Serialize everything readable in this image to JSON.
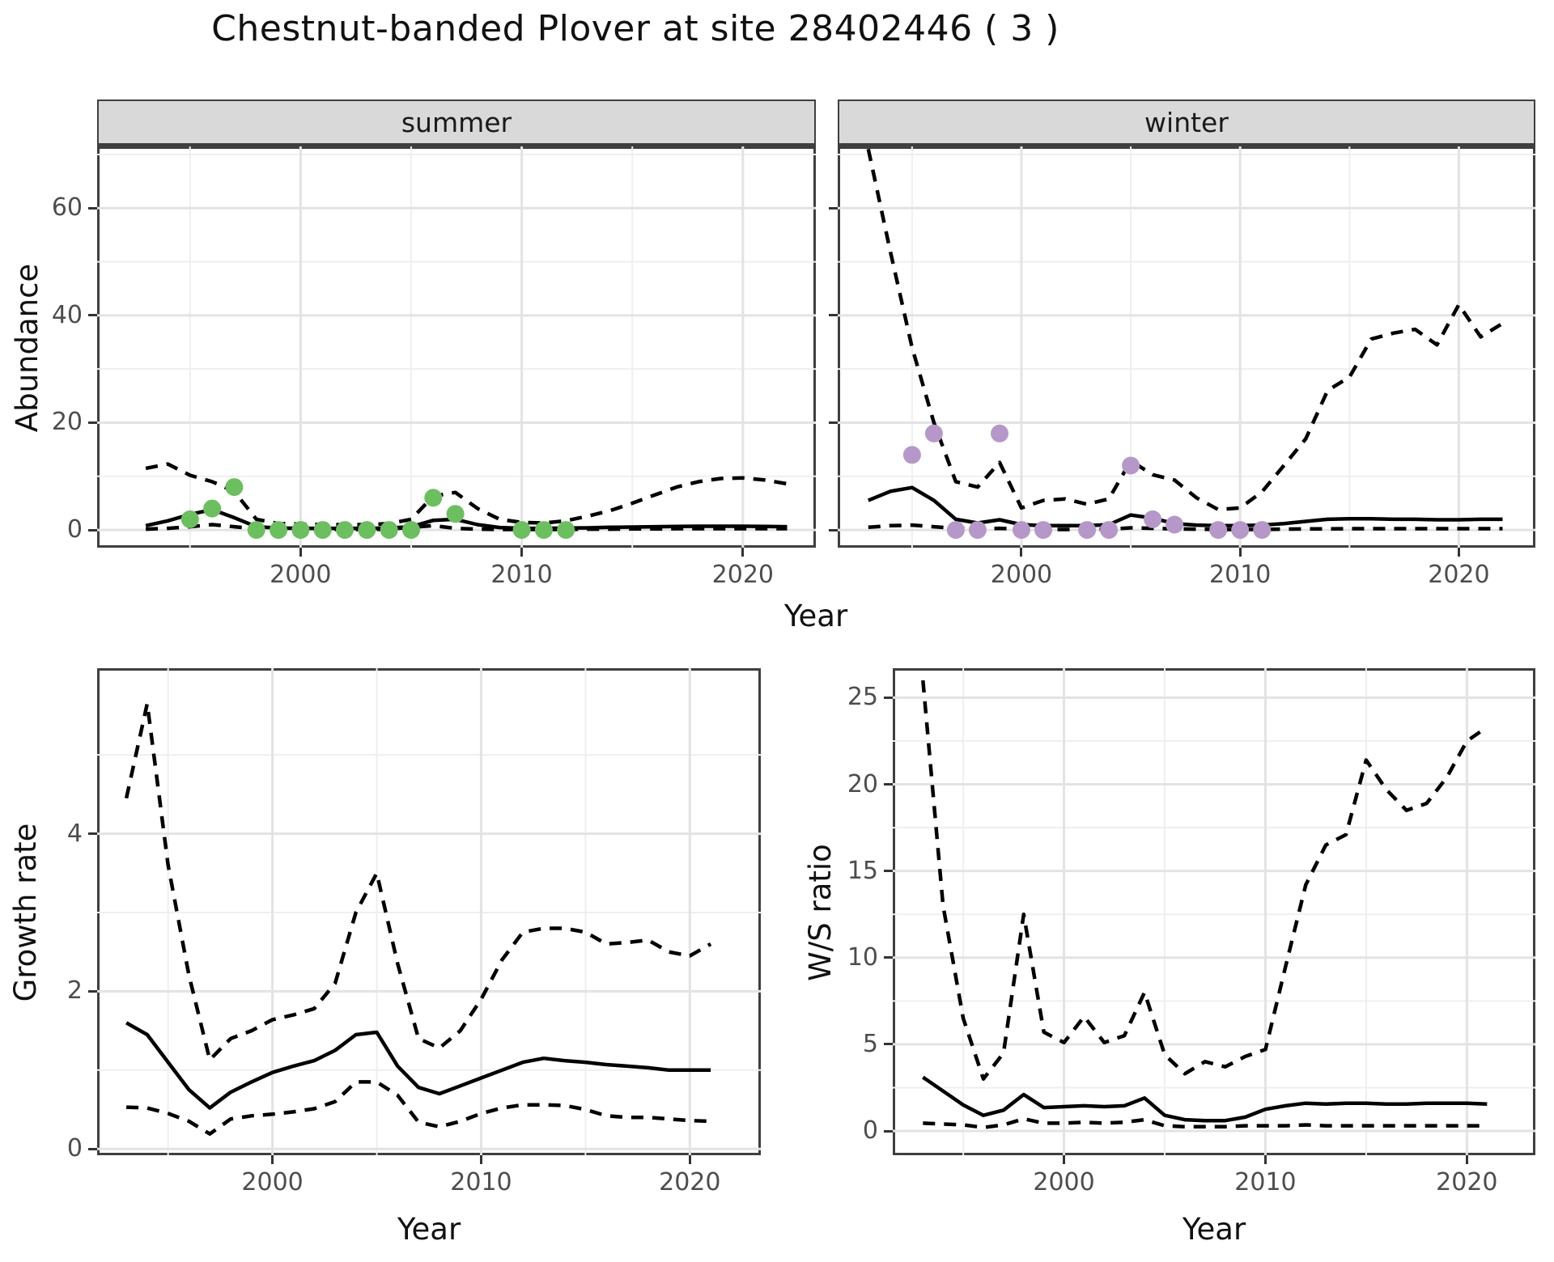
{
  "title": "Chestnut-banded Plover at site 28402446 ( 3 )",
  "facets": {
    "summer_label": "summer",
    "winter_label": "winter"
  },
  "axes": {
    "abundance_label": "Abundance",
    "growth_label": "Growth rate",
    "ws_label": "W/S ratio",
    "year_label": "Year"
  },
  "colors": {
    "summer_points": "#6cbf5f",
    "winter_points": "#b598c9",
    "fit_line": "#000000",
    "ci_line": "#000000",
    "strip_bg": "#d9d9d9",
    "grid_major": "#e3e3e3",
    "grid_minor": "#efefef",
    "axis_text": "#4d4d4d",
    "panel_border": "#3f3f3f"
  },
  "chart_data": [
    {
      "id": "abundance_summer",
      "type": "line",
      "facet": "summer",
      "xlabel": "Year",
      "ylabel": "Abundance",
      "x_domain": [
        1990.8,
        2023.3
      ],
      "y_domain": [
        -3.3,
        71.5
      ],
      "x_ticks": [
        2000,
        2010,
        2020
      ],
      "x_minor": [
        1995,
        2005,
        2015
      ],
      "y_ticks": [
        0,
        20,
        40,
        60
      ],
      "y_minor": [
        10,
        30,
        50,
        70
      ],
      "grid": true,
      "point_color": "#6cbf5f",
      "series": [
        {
          "name": "fit",
          "style": "solid",
          "x_start": 1993,
          "values": [
            0.8,
            1.7,
            2.9,
            3.8,
            2.3,
            0.6,
            0.35,
            0.3,
            0.3,
            0.3,
            0.3,
            0.35,
            0.6,
            1.8,
            2.0,
            1.0,
            0.45,
            0.3,
            0.3,
            0.35,
            0.4,
            0.5,
            0.55,
            0.6,
            0.65,
            0.7,
            0.7,
            0.7,
            0.65,
            0.6
          ]
        },
        {
          "name": "upper_ci",
          "style": "dashed",
          "x_start": 1993,
          "values": [
            11.5,
            12.3,
            10.2,
            9.0,
            7.2,
            2.0,
            1.2,
            1.1,
            1.0,
            1.0,
            1.0,
            1.2,
            2.0,
            6.3,
            7.0,
            4.0,
            2.0,
            1.4,
            1.3,
            1.7,
            2.6,
            3.6,
            5.0,
            6.5,
            8.0,
            9.0,
            9.6,
            9.7,
            9.3,
            8.6
          ]
        },
        {
          "name": "lower_ci",
          "style": "dashed",
          "x_start": 1993,
          "values": [
            0.15,
            0.3,
            0.6,
            1.0,
            0.6,
            0.2,
            0.1,
            0.1,
            0.1,
            0.1,
            0.1,
            0.15,
            0.5,
            0.8,
            0.3,
            0.15,
            0.1,
            0.1,
            0.1,
            0.1,
            0.15,
            0.15,
            0.2,
            0.2,
            0.25,
            0.25,
            0.25,
            0.25,
            0.25,
            0.25
          ]
        }
      ],
      "points": {
        "name": "observed_summer_counts",
        "years": [
          1995,
          1996,
          1997,
          1998,
          1999,
          2000,
          2001,
          2002,
          2003,
          2004,
          2005,
          2006,
          2007,
          2010,
          2011,
          2012
        ],
        "values": [
          2,
          4,
          8,
          0,
          0,
          0,
          0,
          0,
          0,
          0,
          0,
          6,
          3,
          0,
          0,
          0
        ]
      }
    },
    {
      "id": "abundance_winter",
      "type": "line",
      "facet": "winter",
      "xlabel": "Year",
      "ylabel": "Abundance",
      "x_domain": [
        1991.6,
        2023.5
      ],
      "y_domain": [
        -3.3,
        71.5
      ],
      "x_ticks": [
        2000,
        2010,
        2020
      ],
      "x_minor": [
        1995,
        2005,
        2015
      ],
      "y_ticks": [
        0,
        20,
        40,
        60
      ],
      "y_minor": [
        10,
        30,
        50,
        70
      ],
      "grid": true,
      "point_color": "#b598c9",
      "series": [
        {
          "name": "fit",
          "style": "solid",
          "x_start": 1993,
          "values": [
            5.5,
            7.2,
            7.9,
            5.5,
            2.0,
            1.3,
            1.9,
            1.0,
            0.8,
            0.8,
            0.8,
            1.0,
            2.8,
            2.2,
            1.2,
            0.9,
            0.8,
            0.8,
            0.9,
            1.2,
            1.6,
            2.0,
            2.1,
            2.1,
            2.0,
            2.0,
            1.9,
            1.9,
            2.0,
            2.0
          ]
        },
        {
          "name": "upper_ci",
          "style": "dashed",
          "x_start": 1993,
          "values": [
            71,
            52,
            34,
            20,
            9.0,
            8.0,
            12.6,
            4.1,
            5.5,
            5.8,
            4.8,
            5.8,
            12.9,
            10.3,
            9.3,
            6.0,
            3.8,
            4.1,
            7.1,
            12.0,
            17.0,
            26.0,
            28.5,
            35.6,
            36.7,
            37.4,
            34.5,
            42.0,
            36.0,
            38.5
          ]
        },
        {
          "name": "lower_ci",
          "style": "dashed",
          "x_start": 1993,
          "values": [
            0.5,
            0.8,
            0.9,
            0.6,
            0.3,
            0.2,
            0.3,
            0.15,
            0.1,
            0.1,
            0.1,
            0.15,
            0.4,
            0.3,
            0.2,
            0.15,
            0.1,
            0.1,
            0.1,
            0.15,
            0.2,
            0.2,
            0.25,
            0.25,
            0.25,
            0.25,
            0.25,
            0.25,
            0.25,
            0.25
          ]
        }
      ],
      "points": {
        "name": "observed_winter_counts",
        "years": [
          1995,
          1996,
          1997,
          1998,
          1999,
          2000,
          2001,
          2003,
          2004,
          2005,
          2006,
          2007,
          2009,
          2010,
          2011
        ],
        "values": [
          14,
          18,
          0,
          0,
          18,
          0,
          0,
          0,
          0,
          12,
          2,
          1,
          0,
          0,
          0
        ]
      }
    },
    {
      "id": "growth_rate",
      "type": "line",
      "xlabel": "Year",
      "ylabel": "Growth rate",
      "x_domain": [
        1991.6,
        2023.4
      ],
      "y_domain": [
        -0.08,
        6.1
      ],
      "x_ticks": [
        2000,
        2010,
        2020
      ],
      "x_minor": [
        1995,
        2005,
        2015
      ],
      "y_ticks": [
        0,
        2,
        4
      ],
      "y_minor": [
        1,
        3,
        5
      ],
      "grid": true,
      "series": [
        {
          "name": "fit",
          "style": "solid",
          "x_start": 1993,
          "values": [
            1.6,
            1.45,
            1.1,
            0.75,
            0.52,
            0.72,
            0.85,
            0.97,
            1.05,
            1.12,
            1.25,
            1.45,
            1.48,
            1.05,
            0.78,
            0.7,
            0.8,
            0.9,
            1.0,
            1.1,
            1.15,
            1.12,
            1.1,
            1.07,
            1.05,
            1.03,
            1.0,
            1.0,
            1.0
          ]
        },
        {
          "name": "upper_ci",
          "style": "dashed",
          "x_start": 1993,
          "values": [
            4.45,
            5.65,
            3.6,
            2.2,
            1.13,
            1.4,
            1.5,
            1.64,
            1.7,
            1.78,
            2.1,
            3.0,
            3.5,
            2.35,
            1.4,
            1.28,
            1.5,
            1.9,
            2.4,
            2.75,
            2.8,
            2.8,
            2.75,
            2.6,
            2.62,
            2.65,
            2.5,
            2.45,
            2.6
          ]
        },
        {
          "name": "lower_ci",
          "style": "dashed",
          "x_start": 1993,
          "values": [
            0.53,
            0.52,
            0.45,
            0.35,
            0.19,
            0.38,
            0.42,
            0.44,
            0.47,
            0.51,
            0.6,
            0.85,
            0.85,
            0.68,
            0.34,
            0.28,
            0.35,
            0.45,
            0.52,
            0.56,
            0.56,
            0.55,
            0.5,
            0.42,
            0.4,
            0.4,
            0.38,
            0.36,
            0.35
          ]
        }
      ]
    },
    {
      "id": "ws_ratio",
      "type": "line",
      "xlabel": "Year",
      "ylabel": "W/S ratio",
      "x_domain": [
        1991.5,
        2023.4
      ],
      "y_domain": [
        -1.4,
        26.7
      ],
      "x_ticks": [
        2000,
        2010,
        2020
      ],
      "x_minor": [
        1995,
        2005,
        2015
      ],
      "y_ticks": [
        0,
        5,
        10,
        15,
        20,
        25
      ],
      "y_minor": [
        2.5,
        7.5,
        12.5,
        17.5,
        22.5
      ],
      "grid": true,
      "series": [
        {
          "name": "fit",
          "style": "solid",
          "x_start": 1993,
          "values": [
            3.1,
            2.3,
            1.5,
            0.9,
            1.2,
            2.1,
            1.35,
            1.4,
            1.45,
            1.4,
            1.45,
            1.9,
            0.9,
            0.65,
            0.6,
            0.6,
            0.8,
            1.25,
            1.45,
            1.6,
            1.55,
            1.6,
            1.6,
            1.55,
            1.55,
            1.6,
            1.6,
            1.6,
            1.55
          ]
        },
        {
          "name": "upper_ci",
          "style": "dashed",
          "x_start": 1993,
          "values": [
            26.0,
            13.0,
            6.5,
            3.0,
            4.5,
            12.5,
            5.7,
            5.1,
            6.6,
            5.1,
            5.5,
            8.0,
            4.4,
            3.3,
            4.0,
            3.7,
            4.3,
            4.7,
            9.5,
            14.2,
            16.5,
            17.1,
            21.4,
            19.7,
            18.5,
            18.9,
            20.4,
            22.5,
            23.3
          ]
        },
        {
          "name": "lower_ci",
          "style": "dashed",
          "x_start": 1993,
          "values": [
            0.45,
            0.4,
            0.35,
            0.2,
            0.35,
            0.7,
            0.45,
            0.45,
            0.5,
            0.45,
            0.5,
            0.65,
            0.3,
            0.25,
            0.25,
            0.25,
            0.3,
            0.3,
            0.3,
            0.35,
            0.3,
            0.3,
            0.3,
            0.3,
            0.3,
            0.3,
            0.3,
            0.3,
            0.3
          ]
        }
      ]
    }
  ]
}
